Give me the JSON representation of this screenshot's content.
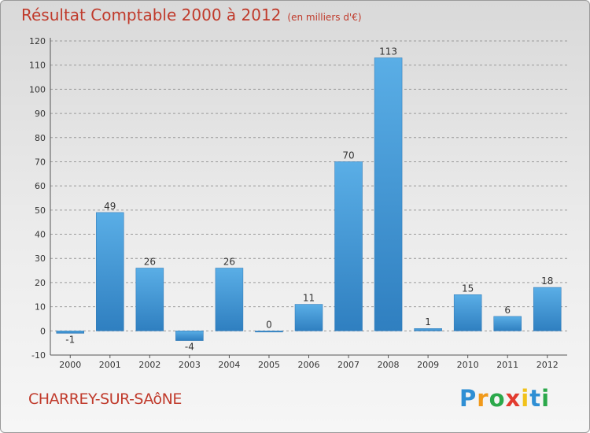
{
  "title": "Résultat Comptable 2000 à 2012",
  "subtitle": "(en milliers d'€)",
  "commune": "CHARREY-SUR-SAôNE",
  "logo": {
    "letters": [
      "P",
      "r",
      "o",
      "x",
      "i",
      "t",
      "i"
    ],
    "colors": [
      "#2f8fd4",
      "#f19a1b",
      "#2ba84a",
      "#e23b2f",
      "#f1c21b",
      "#2f8fd4",
      "#2ba84a"
    ]
  },
  "colors": {
    "bar_top": "#5aaee6",
    "bar_bottom": "#2f7fc0",
    "text": "#c03a2b",
    "axis": "#333333"
  },
  "chart_data": {
    "type": "bar",
    "categories": [
      "2000",
      "2001",
      "2002",
      "2003",
      "2004",
      "2005",
      "2006",
      "2007",
      "2008",
      "2009",
      "2010",
      "2011",
      "2012"
    ],
    "values": [
      -1,
      49,
      26,
      -4,
      26,
      0,
      11,
      70,
      113,
      1,
      15,
      6,
      18
    ],
    "data_labels": [
      "-1",
      "49",
      "26",
      "-4",
      "26",
      "0",
      "11",
      "70",
      "113",
      "1",
      "15",
      "6",
      "18"
    ],
    "yticks": [
      -10,
      0,
      10,
      20,
      30,
      40,
      50,
      60,
      70,
      80,
      90,
      100,
      110,
      120
    ],
    "ylim": [
      -10,
      120
    ],
    "grid": "dashed horizontal",
    "xlabel": "",
    "ylabel": ""
  }
}
